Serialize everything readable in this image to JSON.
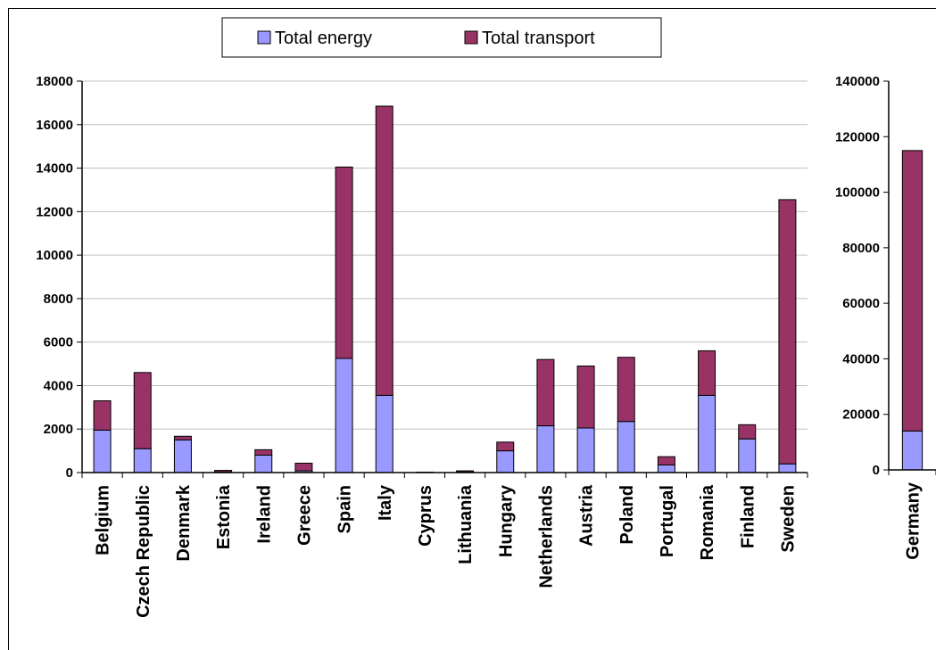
{
  "colors": {
    "energy": "#9999ff",
    "transport": "#993366",
    "grid": "#c0c0c0",
    "axis": "#000000"
  },
  "legend": {
    "items": [
      {
        "name": "Total energy",
        "color": "#9999ff"
      },
      {
        "name": "Total transport",
        "color": "#993366"
      }
    ]
  },
  "chart_data": [
    {
      "type": "bar",
      "stacked": true,
      "categories": [
        "Belgium",
        "Czech Republic",
        "Denmark",
        "Estonia",
        "Ireland",
        "Greece",
        "Spain",
        "Italy",
        "Cyprus",
        "Lithuania",
        "Hungary",
        "Netherlands",
        "Austria",
        "Poland",
        "Portugal",
        "Romania",
        "Finland",
        "Sweden"
      ],
      "series": [
        {
          "name": "Total energy",
          "values": [
            1950,
            1100,
            1500,
            30,
            800,
            80,
            5250,
            3550,
            0,
            30,
            1000,
            2150,
            2050,
            2350,
            350,
            3550,
            1550,
            400
          ]
        },
        {
          "name": "Total transport",
          "values": [
            1350,
            3500,
            170,
            70,
            250,
            350,
            8800,
            13300,
            20,
            50,
            400,
            3050,
            2850,
            2950,
            380,
            2050,
            650,
            12150
          ]
        }
      ],
      "ylim": [
        0,
        18000
      ],
      "yticks": [
        "0",
        "2000",
        "4000",
        "6000",
        "8000",
        "10000",
        "12000",
        "14000",
        "16000",
        "18000"
      ],
      "grid": true,
      "legend_position": "top"
    },
    {
      "type": "bar",
      "stacked": true,
      "categories": [
        "Germany"
      ],
      "series": [
        {
          "name": "Total energy",
          "values": [
            14000
          ]
        },
        {
          "name": "Total transport",
          "values": [
            101000
          ]
        }
      ],
      "ylim": [
        0,
        140000
      ],
      "yticks": [
        "0",
        "20000",
        "40000",
        "60000",
        "80000",
        "100000",
        "120000",
        "140000"
      ],
      "grid": false
    }
  ]
}
